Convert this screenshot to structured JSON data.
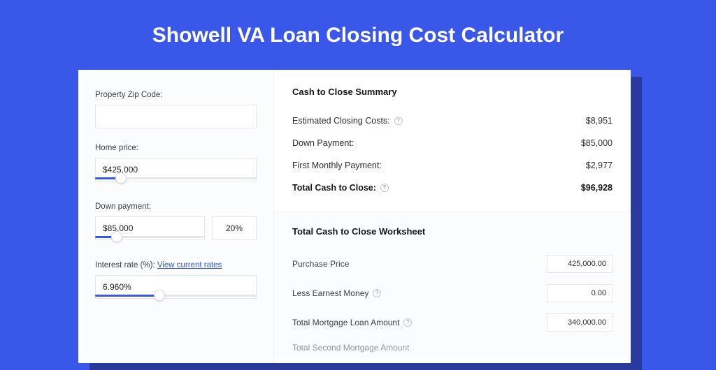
{
  "colors": {
    "page_bg": "#3957e8",
    "card_bg": "#ffffff",
    "card_shadow": "#2a3a9b",
    "panel_bg": "#fbfcfe",
    "border": "#e4e7ee",
    "text": "#2a2d34",
    "text_strong": "#15171c",
    "slider_fill": "#3957e8",
    "slider_rest": "#e4e7ee"
  },
  "title": "Showell VA Loan Closing Cost Calculator",
  "form": {
    "zip": {
      "label": "Property Zip Code:",
      "value": ""
    },
    "home_price": {
      "label": "Home price:",
      "value": "$425,000",
      "slider_pct": 16
    },
    "down_payment": {
      "label": "Down payment:",
      "value": "$85,000",
      "pct_value": "20%",
      "slider_pct": 20
    },
    "interest_rate": {
      "label_prefix": "Interest rate (%): ",
      "link_text": "View current rates",
      "value": "6.960%",
      "slider_pct": 40
    }
  },
  "summary": {
    "heading": "Cash to Close Summary",
    "rows": [
      {
        "label": "Estimated Closing Costs:",
        "help": true,
        "value": "$8,951",
        "bold": false
      },
      {
        "label": "Down Payment:",
        "help": false,
        "value": "$85,000",
        "bold": false
      },
      {
        "label": "First Monthly Payment:",
        "help": false,
        "value": "$2,977",
        "bold": false
      },
      {
        "label": "Total Cash to Close:",
        "help": true,
        "value": "$96,928",
        "bold": true
      }
    ]
  },
  "worksheet": {
    "heading": "Total Cash to Close Worksheet",
    "rows": [
      {
        "label": "Purchase Price",
        "help": false,
        "value": "425,000.00"
      },
      {
        "label": "Less Earnest Money",
        "help": true,
        "value": "0.00"
      },
      {
        "label": "Total Mortgage Loan Amount",
        "help": true,
        "value": "340,000.00"
      }
    ],
    "cutoff_label": "Total Second Mortgage Amount"
  }
}
